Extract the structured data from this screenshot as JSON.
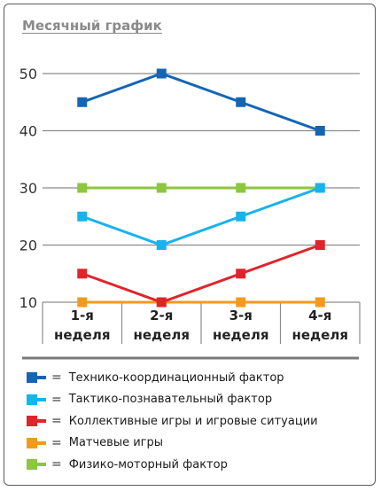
{
  "title": "Месячный график",
  "chart_data": {
    "type": "line",
    "categories": [
      "1-я\nнеделя",
      "2-я\nнеделя",
      "3-я\nнеделя",
      "4-я\nнеделя"
    ],
    "ylim": [
      10,
      50
    ],
    "yticks": [
      10,
      20,
      30,
      40,
      50
    ],
    "grid": true,
    "legend_position": "bottom",
    "legend_separator": "=",
    "series": [
      {
        "name": "Технико-координационный фактор",
        "color": "#1565b5",
        "values": [
          45,
          50,
          45,
          40
        ]
      },
      {
        "name": "Тактико-познавательный фактор",
        "color": "#17b3ec",
        "values": [
          25,
          20,
          25,
          30
        ]
      },
      {
        "name": "Коллективные игры и игровые ситуации",
        "color": "#e0242b",
        "values": [
          15,
          10,
          15,
          20
        ]
      },
      {
        "name": "Матчевые игры",
        "color": "#f39a1e",
        "values": [
          10,
          10,
          10,
          10
        ]
      },
      {
        "name": "Физико-моторный фактор",
        "color": "#8dc63f",
        "values": [
          30,
          30,
          30,
          30
        ]
      }
    ]
  }
}
